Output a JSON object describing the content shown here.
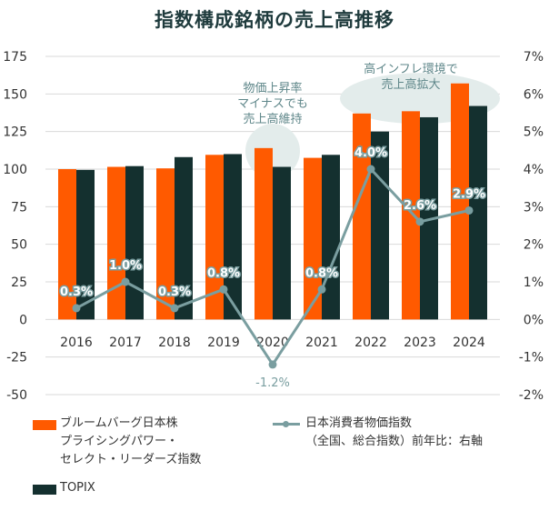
{
  "title": "指数構成銘柄の売上高推移",
  "chart_data": {
    "type": "bar+line",
    "categories": [
      "2016",
      "2017",
      "2018",
      "2019",
      "2020",
      "2021",
      "2022",
      "2023",
      "2024"
    ],
    "series": [
      {
        "name": "ブルームバーグ日本株 プライシングパワー・ セレクト・リーダーズ指数",
        "type": "bar",
        "axis": "left",
        "color": "#ff5a00",
        "values": [
          100,
          101.5,
          100.5,
          109.5,
          114,
          107.5,
          137,
          138.5,
          157
        ]
      },
      {
        "name": "TOPIX",
        "type": "bar",
        "axis": "left",
        "color": "#14302f",
        "values": [
          99.5,
          102,
          108,
          110,
          101.5,
          109.5,
          125,
          134.5,
          142
        ]
      },
      {
        "name": "日本消費者物価指数（全国、総合指数）前年比：右軸",
        "type": "line",
        "axis": "right",
        "color": "#7a9ea0",
        "values": [
          0.3,
          1.0,
          0.3,
          0.8,
          -1.2,
          0.8,
          4.0,
          2.6,
          2.9
        ],
        "labels": [
          "0.3%",
          "1.0%",
          "0.3%",
          "0.8%",
          "-1.2%",
          "0.8%",
          "4.0%",
          "2.6%",
          "2.9%"
        ]
      }
    ],
    "y_left": {
      "min": -50,
      "max": 175,
      "ticks": [
        "175",
        "150",
        "125",
        "100",
        "75",
        "50",
        "25",
        "0",
        "-25",
        "-50"
      ]
    },
    "y_right": {
      "min": -2,
      "max": 7,
      "ticks": [
        "7%",
        "6%",
        "5%",
        "4%",
        "3%",
        "2%",
        "1%",
        "0%",
        "-1%",
        "-2%"
      ]
    },
    "annotations": [
      {
        "text": [
          "物価上昇率",
          "マイナスでも",
          "売上高維持"
        ]
      },
      {
        "text": [
          "高インフレ環境で",
          "売上高拡大"
        ]
      }
    ]
  },
  "legend": {
    "bar1": [
      "ブルームバーグ日本株",
      "プライシングパワー・",
      "セレクト・リーダーズ指数"
    ],
    "bar2": "TOPIX",
    "line": [
      "日本消費者物価指数",
      "（全国、総合指数）前年比：右軸"
    ]
  },
  "colors": {
    "orange": "#ff5a00",
    "dark": "#14302f",
    "line": "#7a9ea0",
    "highlight": "#e3eceb"
  }
}
